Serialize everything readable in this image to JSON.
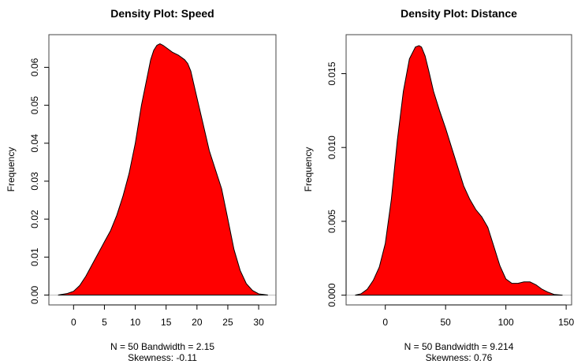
{
  "chart_data": [
    {
      "type": "area",
      "title": "Density Plot: Speed",
      "ylabel": "Frequency",
      "sub": [
        "N = 50   Bandwidth = 2.15",
        "Skewness: -0.11"
      ],
      "xlim": [
        -4,
        32.8
      ],
      "ylim": [
        -0.0026,
        0.0686
      ],
      "xticks": [
        0,
        5,
        10,
        15,
        20,
        25,
        30
      ],
      "yticks": [
        0.0,
        0.01,
        0.02,
        0.03,
        0.04,
        0.05,
        0.06
      ],
      "ytick_labels": [
        "0.00",
        "0.01",
        "0.02",
        "0.03",
        "0.04",
        "0.05",
        "0.06"
      ],
      "fill": "#ff0000",
      "x": [
        -2.5,
        -1,
        0,
        1,
        2,
        3,
        4,
        5,
        6,
        7,
        8,
        9,
        10,
        11,
        12,
        12.5,
        13,
        13.5,
        14,
        14.5,
        15,
        16,
        17,
        18,
        18.5,
        19,
        20,
        21,
        22,
        23,
        24,
        25,
        26,
        27,
        28,
        29,
        30,
        31.5
      ],
      "y": [
        0,
        0.0004,
        0.001,
        0.0025,
        0.005,
        0.008,
        0.011,
        0.014,
        0.017,
        0.021,
        0.026,
        0.032,
        0.04,
        0.05,
        0.058,
        0.062,
        0.0645,
        0.0658,
        0.0662,
        0.0658,
        0.0652,
        0.064,
        0.0632,
        0.062,
        0.061,
        0.059,
        0.052,
        0.045,
        0.038,
        0.033,
        0.028,
        0.02,
        0.012,
        0.0065,
        0.003,
        0.0012,
        0.0003,
        0
      ]
    },
    {
      "type": "area",
      "title": "Density Plot: Distance",
      "ylabel": "Frequency",
      "sub": [
        "N = 50   Bandwidth = 9.214",
        "Skewness: 0.76"
      ],
      "xlim": [
        -32.5,
        154.5
      ],
      "ylim": [
        -0.00066,
        0.01764
      ],
      "xticks": [
        0,
        50,
        100,
        150
      ],
      "yticks": [
        0.0,
        0.005,
        0.01,
        0.015
      ],
      "ytick_labels": [
        "0.000",
        "0.005",
        "0.010",
        "0.015"
      ],
      "fill": "#ff0000",
      "x": [
        -25,
        -20,
        -15,
        -10,
        -5,
        0,
        5,
        10,
        15,
        20,
        25,
        28,
        30,
        33,
        36,
        40,
        45,
        50,
        55,
        60,
        65,
        70,
        75,
        80,
        85,
        90,
        95,
        100,
        105,
        110,
        115,
        120,
        125,
        130,
        135,
        140,
        147
      ],
      "y": [
        0,
        0.0001,
        0.0004,
        0.001,
        0.0019,
        0.0035,
        0.0065,
        0.0105,
        0.0138,
        0.016,
        0.0168,
        0.0169,
        0.0168,
        0.0162,
        0.0152,
        0.0138,
        0.0125,
        0.0113,
        0.01,
        0.0087,
        0.0074,
        0.0065,
        0.0058,
        0.0053,
        0.0046,
        0.0033,
        0.002,
        0.0011,
        0.0008,
        0.0008,
        0.0009,
        0.0009,
        0.0007,
        0.0004,
        0.0002,
        5e-05,
        0
      ]
    }
  ]
}
